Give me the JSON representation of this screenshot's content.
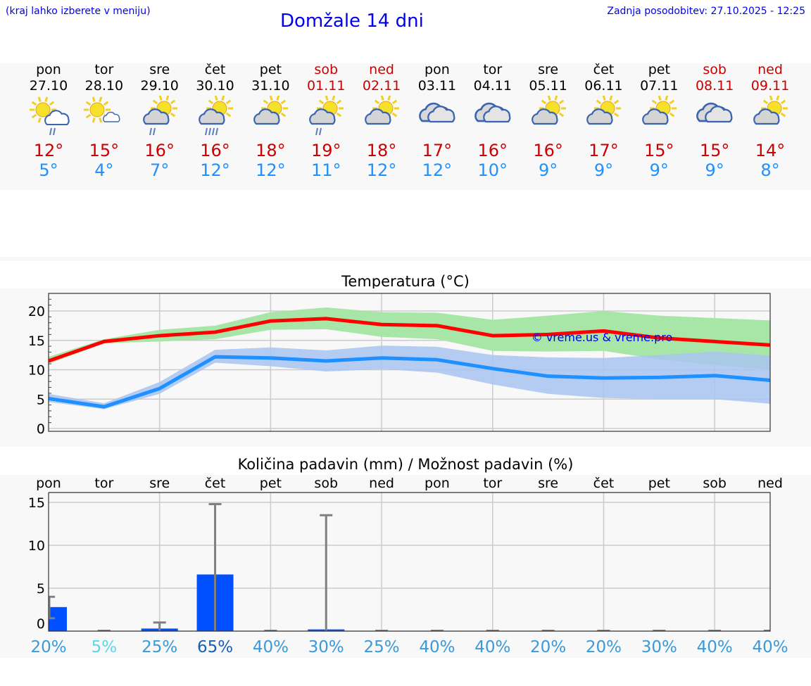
{
  "header": {
    "hint": "(kraj lahko izberete v meniju)",
    "title": "Domžale 14 dni",
    "updated": "Zadnja posodobitev: 27.10.2025 - 12:25"
  },
  "days": [
    {
      "name": "pon",
      "date": "27.10",
      "weekend": false,
      "icon": "sun-cloud-rain",
      "rain": 2,
      "max": "12°",
      "min": "5°"
    },
    {
      "name": "tor",
      "date": "28.10",
      "weekend": false,
      "icon": "sun-small-cloud",
      "rain": 0,
      "max": "15°",
      "min": "4°"
    },
    {
      "name": "sre",
      "date": "29.10",
      "weekend": false,
      "icon": "sun-grey-cloud-rain",
      "rain": 2,
      "max": "16°",
      "min": "7°"
    },
    {
      "name": "čet",
      "date": "30.10",
      "weekend": false,
      "icon": "sun-grey-cloud-rain",
      "rain": 4,
      "max": "16°",
      "min": "12°"
    },
    {
      "name": "pet",
      "date": "31.10",
      "weekend": false,
      "icon": "sun-grey-cloud",
      "rain": 0,
      "max": "18°",
      "min": "12°"
    },
    {
      "name": "sob",
      "date": "01.11",
      "weekend": true,
      "icon": "sun-grey-cloud-rain",
      "rain": 2,
      "max": "19°",
      "min": "11°"
    },
    {
      "name": "ned",
      "date": "02.11",
      "weekend": true,
      "icon": "sun-grey-cloud",
      "rain": 0,
      "max": "18°",
      "min": "12°"
    },
    {
      "name": "pon",
      "date": "03.11",
      "weekend": false,
      "icon": "overcast",
      "rain": 0,
      "max": "17°",
      "min": "12°"
    },
    {
      "name": "tor",
      "date": "04.11",
      "weekend": false,
      "icon": "overcast",
      "rain": 0,
      "max": "16°",
      "min": "10°"
    },
    {
      "name": "sre",
      "date": "05.11",
      "weekend": false,
      "icon": "sun-grey-cloud",
      "rain": 0,
      "max": "16°",
      "min": "9°"
    },
    {
      "name": "čet",
      "date": "06.11",
      "weekend": false,
      "icon": "sun-grey-cloud",
      "rain": 0,
      "max": "17°",
      "min": "9°"
    },
    {
      "name": "pet",
      "date": "07.11",
      "weekend": false,
      "icon": "sun-grey-cloud",
      "rain": 0,
      "max": "15°",
      "min": "9°"
    },
    {
      "name": "sob",
      "date": "08.11",
      "weekend": true,
      "icon": "overcast",
      "rain": 0,
      "max": "15°",
      "min": "9°"
    },
    {
      "name": "ned",
      "date": "09.11",
      "weekend": true,
      "icon": "sun-grey-cloud",
      "rain": 0,
      "max": "14°",
      "min": "8°"
    }
  ],
  "colors": {
    "max": "#ff0000",
    "min": "#1e90ff",
    "max_band": "#a8e6a8",
    "min_band": "#a8c4f0",
    "bar": "#0050ff",
    "err": "#808080"
  },
  "chart_data": [
    {
      "type": "line",
      "title": "Temperatura (°C)",
      "watermark": "© vreme.us & vreme.pro",
      "ylim": [
        0,
        23
      ],
      "yticks": [
        0,
        5,
        10,
        15,
        20
      ],
      "grid": true,
      "series": [
        {
          "name": "max",
          "values": [
            11.5,
            14.8,
            15.8,
            16.4,
            18.3,
            18.7,
            17.7,
            17.5,
            15.8,
            16.0,
            16.6,
            15.4,
            14.8,
            14.2
          ],
          "low": [
            11.0,
            14.5,
            14.8,
            15.2,
            16.8,
            16.9,
            15.6,
            15.2,
            13.2,
            13.1,
            13.2,
            11.8,
            10.8,
            10.0
          ],
          "high": [
            12.2,
            15.2,
            16.8,
            17.5,
            19.8,
            20.6,
            19.8,
            19.7,
            18.5,
            19.2,
            20.0,
            19.2,
            18.8,
            18.4
          ]
        },
        {
          "name": "min",
          "values": [
            5.1,
            3.7,
            6.8,
            12.2,
            12.0,
            11.5,
            12.0,
            11.7,
            10.2,
            8.9,
            8.6,
            8.7,
            9.0,
            8.2
          ],
          "low": [
            4.5,
            3.3,
            5.9,
            11.2,
            10.6,
            9.7,
            10.1,
            9.5,
            7.5,
            5.9,
            5.2,
            5.0,
            5.0,
            4.2
          ],
          "high": [
            5.9,
            4.3,
            7.9,
            13.4,
            13.8,
            13.3,
            14.1,
            13.9,
            12.5,
            12.1,
            12.0,
            12.5,
            13.1,
            12.4
          ]
        }
      ]
    },
    {
      "type": "bar",
      "title": "Količina padavin (mm) / Možnost padavin (%)",
      "categories": [
        "pon",
        "tor",
        "sre",
        "čet",
        "pet",
        "sob",
        "ned",
        "pon",
        "tor",
        "sre",
        "čet",
        "pet",
        "sob",
        "ned"
      ],
      "ylim": [
        0,
        16.2
      ],
      "yticks": [
        0,
        5,
        10,
        15
      ],
      "values": [
        2.8,
        0,
        0.3,
        6.6,
        0,
        0.2,
        0,
        0,
        0,
        0,
        0,
        0,
        0,
        0
      ],
      "err_low": [
        1.5,
        0,
        0,
        0,
        0,
        0,
        0,
        0,
        0,
        0,
        0,
        0,
        0,
        0
      ],
      "err_high": [
        4.0,
        0,
        1.0,
        14.8,
        0,
        13.5,
        0,
        0,
        0,
        0,
        0,
        0,
        0,
        0
      ],
      "probability": [
        "20%",
        "5%",
        "25%",
        "65%",
        "40%",
        "30%",
        "25%",
        "40%",
        "40%",
        "20%",
        "20%",
        "30%",
        "40%",
        "40%"
      ],
      "prob_colors": [
        "#3a9ad9",
        "#5cd6e8",
        "#3a9ad9",
        "#1a5fb4",
        "#3a9ad9",
        "#3a9ad9",
        "#3a9ad9",
        "#3a9ad9",
        "#3a9ad9",
        "#3a9ad9",
        "#3a9ad9",
        "#3a9ad9",
        "#3a9ad9",
        "#3a9ad9"
      ]
    }
  ]
}
